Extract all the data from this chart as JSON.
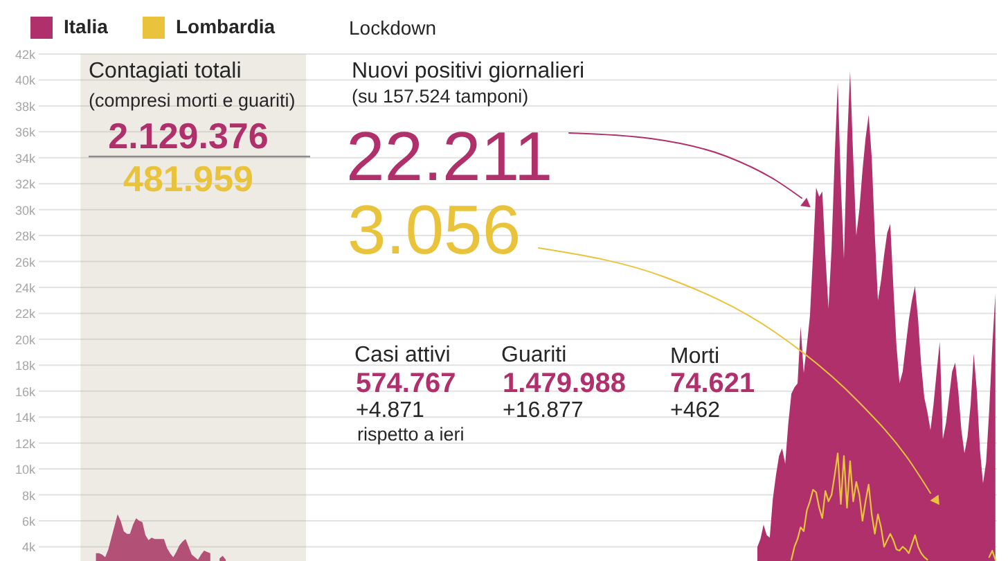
{
  "chart_data": {
    "type": "area",
    "categories": [
      null,
      null,
      null,
      null,
      null,
      null,
      null,
      null,
      null,
      null,
      null,
      null,
      null,
      null,
      null,
      null,
      null,
      null,
      null,
      null,
      null,
      null,
      null,
      null,
      null,
      null,
      null,
      null,
      null,
      null,
      null,
      null,
      null,
      null,
      null,
      null,
      null,
      null,
      null,
      null,
      null,
      null,
      null,
      null,
      null,
      null,
      null,
      null,
      null,
      null,
      null,
      null,
      null,
      null,
      null,
      null,
      null,
      null,
      null,
      null,
      null,
      null,
      null,
      null,
      null,
      null,
      null,
      null,
      null,
      null,
      null,
      null,
      null,
      null,
      null,
      null,
      null,
      null,
      null,
      null,
      null,
      null,
      null,
      null,
      null,
      null,
      null,
      null,
      null,
      null,
      null,
      null,
      null,
      null,
      null,
      null,
      null,
      null,
      null,
      null,
      null,
      null,
      null,
      null,
      null,
      null,
      null,
      null,
      null,
      null,
      null,
      null,
      null,
      null,
      null,
      null,
      null,
      null,
      null,
      null,
      null,
      null,
      null,
      null,
      null,
      null,
      null,
      null,
      null,
      null,
      null,
      null,
      null,
      null,
      null,
      null,
      null,
      null,
      null,
      null,
      null,
      null,
      null,
      null,
      null,
      null,
      null,
      null,
      null,
      null,
      null,
      null,
      null,
      null,
      null,
      null,
      null,
      null,
      null,
      null,
      null,
      null,
      null,
      null,
      null,
      null,
      null,
      null,
      null,
      null,
      null,
      null,
      null,
      null,
      null,
      null,
      null,
      null,
      null,
      null,
      null,
      null,
      null,
      null,
      null,
      null,
      null,
      null,
      null,
      null,
      null,
      null,
      null,
      null,
      null,
      null,
      null,
      null,
      null,
      null,
      null,
      null,
      null,
      null,
      null,
      null,
      null,
      null,
      null,
      null,
      null,
      null,
      null,
      null,
      null,
      null,
      null,
      null,
      null,
      null,
      null,
      null,
      null,
      null,
      null,
      null,
      null,
      null,
      null,
      null,
      null,
      null,
      null,
      null,
      null,
      null,
      null,
      null,
      null,
      null,
      null,
      null,
      null,
      null,
      null,
      null,
      null,
      null,
      null,
      null,
      null,
      null,
      null,
      null,
      null,
      null,
      null,
      null,
      null,
      null,
      null,
      null,
      null,
      null,
      null,
      null,
      null,
      null,
      null,
      null,
      null,
      null,
      null,
      null,
      null,
      null,
      null,
      null,
      null,
      null,
      null,
      null,
      null,
      null,
      null,
      null,
      null,
      null,
      null,
      null,
      null,
      null,
      null,
      null,
      null,
      null,
      null,
      null,
      null,
      null,
      null,
      null,
      null,
      null,
      null,
      null,
      null,
      null,
      null,
      null
    ],
    "series": [
      {
        "name": "Italia",
        "color": "#b0306c",
        "values": [
          null,
          null,
          null,
          null,
          null,
          null,
          null,
          null,
          null,
          null,
          null,
          null,
          null,
          null,
          null,
          null,
          null,
          null,
          3500,
          3500,
          3400,
          3200,
          3800,
          4700,
          5600,
          6500,
          6000,
          5200,
          5000,
          5000,
          5700,
          6200,
          6000,
          5900,
          4900,
          4500,
          4700,
          4600,
          4600,
          4600,
          4600,
          3900,
          3500,
          3200,
          3600,
          4100,
          4400,
          4600,
          4000,
          3400,
          3200,
          3000,
          3400,
          3700,
          3600,
          3500,
          null,
          null,
          3100,
          3300,
          3000,
          null,
          null,
          null,
          null,
          null,
          null,
          null,
          null,
          null,
          null,
          null,
          null,
          null,
          null,
          null,
          null,
          null,
          null,
          null,
          null,
          null,
          null,
          null,
          null,
          null,
          null,
          null,
          null,
          null,
          null,
          null,
          null,
          null,
          null,
          null,
          null,
          null,
          null,
          null,
          null,
          null,
          null,
          null,
          null,
          null,
          null,
          null,
          null,
          null,
          null,
          null,
          null,
          null,
          null,
          null,
          null,
          null,
          null,
          null,
          null,
          null,
          null,
          null,
          null,
          null,
          null,
          null,
          null,
          null,
          null,
          null,
          null,
          null,
          null,
          null,
          null,
          null,
          null,
          null,
          null,
          null,
          null,
          null,
          null,
          null,
          null,
          null,
          null,
          null,
          null,
          null,
          null,
          null,
          null,
          null,
          null,
          null,
          null,
          null,
          null,
          null,
          null,
          null,
          null,
          null,
          null,
          null,
          null,
          null,
          null,
          null,
          null,
          null,
          null,
          null,
          null,
          null,
          null,
          null,
          null,
          null,
          null,
          null,
          null,
          null,
          null,
          null,
          null,
          null,
          null,
          null,
          null,
          null,
          null,
          null,
          null,
          null,
          null,
          null,
          null,
          null,
          null,
          null,
          null,
          null,
          null,
          null,
          null,
          null,
          null,
          null,
          null,
          null,
          null,
          null,
          null,
          null,
          null,
          null,
          null,
          null,
          null,
          null,
          null,
          null,
          null,
          null,
          null,
          null,
          null,
          null,
          4000,
          4600,
          5700,
          4900,
          4700,
          7700,
          9500,
          11000,
          11600,
          10400,
          13500,
          15800,
          16300,
          16600,
          21000,
          17400,
          19500,
          21800,
          26500,
          31700,
          31000,
          31400,
          26500,
          22400,
          27000,
          34000,
          39800,
          32000,
          26200,
          35000,
          40700,
          34000,
          28000,
          30000,
          33000,
          35500,
          37300,
          34000,
          28000,
          23000,
          24500,
          26500,
          28200,
          28900,
          24000,
          19500,
          16600,
          17500,
          19500,
          21500,
          23000,
          24100,
          21500,
          18000,
          15500,
          14400,
          13000,
          15000,
          17500,
          19800,
          12300,
          13500,
          15500,
          17500,
          18200,
          16000,
          13000,
          11200,
          12500,
          15000,
          18900,
          16000,
          11500,
          8900,
          10500,
          14500,
          19500,
          23500
        ]
      },
      {
        "name": "Lombardia",
        "color": "#e8c33b",
        "type": "line",
        "values": [
          null,
          null,
          null,
          null,
          null,
          null,
          null,
          null,
          null,
          null,
          null,
          null,
          null,
          null,
          null,
          null,
          null,
          null,
          null,
          null,
          null,
          null,
          null,
          null,
          null,
          null,
          null,
          null,
          null,
          null,
          null,
          null,
          null,
          null,
          null,
          null,
          null,
          null,
          null,
          null,
          null,
          null,
          null,
          null,
          null,
          null,
          null,
          null,
          null,
          null,
          null,
          null,
          null,
          null,
          null,
          null,
          null,
          null,
          null,
          null,
          null,
          null,
          null,
          null,
          null,
          null,
          null,
          null,
          null,
          null,
          null,
          null,
          null,
          null,
          null,
          null,
          null,
          null,
          null,
          null,
          null,
          null,
          null,
          null,
          null,
          null,
          null,
          null,
          null,
          null,
          null,
          null,
          null,
          null,
          null,
          null,
          null,
          null,
          null,
          null,
          null,
          null,
          null,
          null,
          null,
          null,
          null,
          null,
          null,
          null,
          null,
          null,
          null,
          null,
          null,
          null,
          null,
          null,
          null,
          null,
          null,
          null,
          null,
          null,
          null,
          null,
          null,
          null,
          null,
          null,
          null,
          null,
          null,
          null,
          null,
          null,
          null,
          null,
          null,
          null,
          null,
          null,
          null,
          null,
          null,
          null,
          null,
          null,
          null,
          null,
          null,
          null,
          null,
          null,
          null,
          null,
          null,
          null,
          null,
          null,
          null,
          null,
          null,
          null,
          null,
          null,
          null,
          null,
          null,
          null,
          null,
          null,
          null,
          null,
          null,
          null,
          null,
          null,
          null,
          null,
          null,
          null,
          null,
          null,
          null,
          null,
          null,
          null,
          null,
          null,
          null,
          null,
          null,
          null,
          null,
          null,
          null,
          null,
          null,
          null,
          null,
          null,
          null,
          null,
          null,
          null,
          null,
          null,
          null,
          null,
          null,
          null,
          null,
          null,
          null,
          null,
          null,
          null,
          null,
          null,
          null,
          null,
          null,
          null,
          null,
          null,
          null,
          null,
          null,
          null,
          null,
          null,
          null,
          null,
          null,
          null,
          null,
          null,
          null,
          null,
          null,
          null,
          null,
          3000,
          4000,
          4600,
          5500,
          5200,
          6800,
          7500,
          8400,
          8200,
          7000,
          6200,
          8300,
          7500,
          8000,
          9500,
          11200,
          7300,
          11000,
          7000,
          10600,
          7500,
          9000,
          8000,
          6000,
          7500,
          8800,
          6500,
          5000,
          6500,
          5500,
          4000,
          4500,
          5000,
          4500,
          3800,
          3700,
          4000,
          3800,
          3500,
          4200,
          4900,
          4000,
          3500,
          3200,
          3000,
          null,
          null,
          null,
          null,
          null,
          null,
          null,
          null,
          null,
          null,
          null,
          null,
          null,
          null,
          null,
          null,
          null,
          null,
          null,
          3200,
          3700,
          3000
        ]
      }
    ],
    "ylim": [
      2900,
      42000
    ],
    "yticks": [
      {
        "value": 4000,
        "label": "4k"
      },
      {
        "value": 6000,
        "label": "6k"
      },
      {
        "value": 8000,
        "label": "8k"
      },
      {
        "value": 10000,
        "label": "10k"
      },
      {
        "value": 12000,
        "label": "12k"
      },
      {
        "value": 14000,
        "label": "14k"
      },
      {
        "value": 16000,
        "label": "16k"
      },
      {
        "value": 18000,
        "label": "18k"
      },
      {
        "value": 20000,
        "label": "20k"
      },
      {
        "value": 22000,
        "label": "22k"
      },
      {
        "value": 24000,
        "label": "24k"
      },
      {
        "value": 26000,
        "label": "26k"
      },
      {
        "value": 28000,
        "label": "28k"
      },
      {
        "value": 30000,
        "label": "30k"
      },
      {
        "value": 32000,
        "label": "32k"
      },
      {
        "value": 34000,
        "label": "34k"
      },
      {
        "value": 36000,
        "label": "36k"
      },
      {
        "value": 38000,
        "label": "38k"
      },
      {
        "value": 40000,
        "label": "40k"
      },
      {
        "value": 42000,
        "label": "42k"
      }
    ],
    "grid": "y",
    "legend": "top left",
    "tick_labels": "y",
    "annotations": [
      "Contagiati totali",
      "(compresi morti e guariti)",
      "2.129.376",
      "481.959",
      "Nuovi positivi giornalieri",
      "(su 157.524 tamponi)",
      "22.211",
      "3.056",
      "Casi attivi",
      "574.767",
      "+4.871",
      "rispetto a ieri",
      "Guariti",
      "1.479.988",
      "+16.877",
      "Morti",
      "74.621",
      "+462",
      "Lockdown"
    ]
  }
}
